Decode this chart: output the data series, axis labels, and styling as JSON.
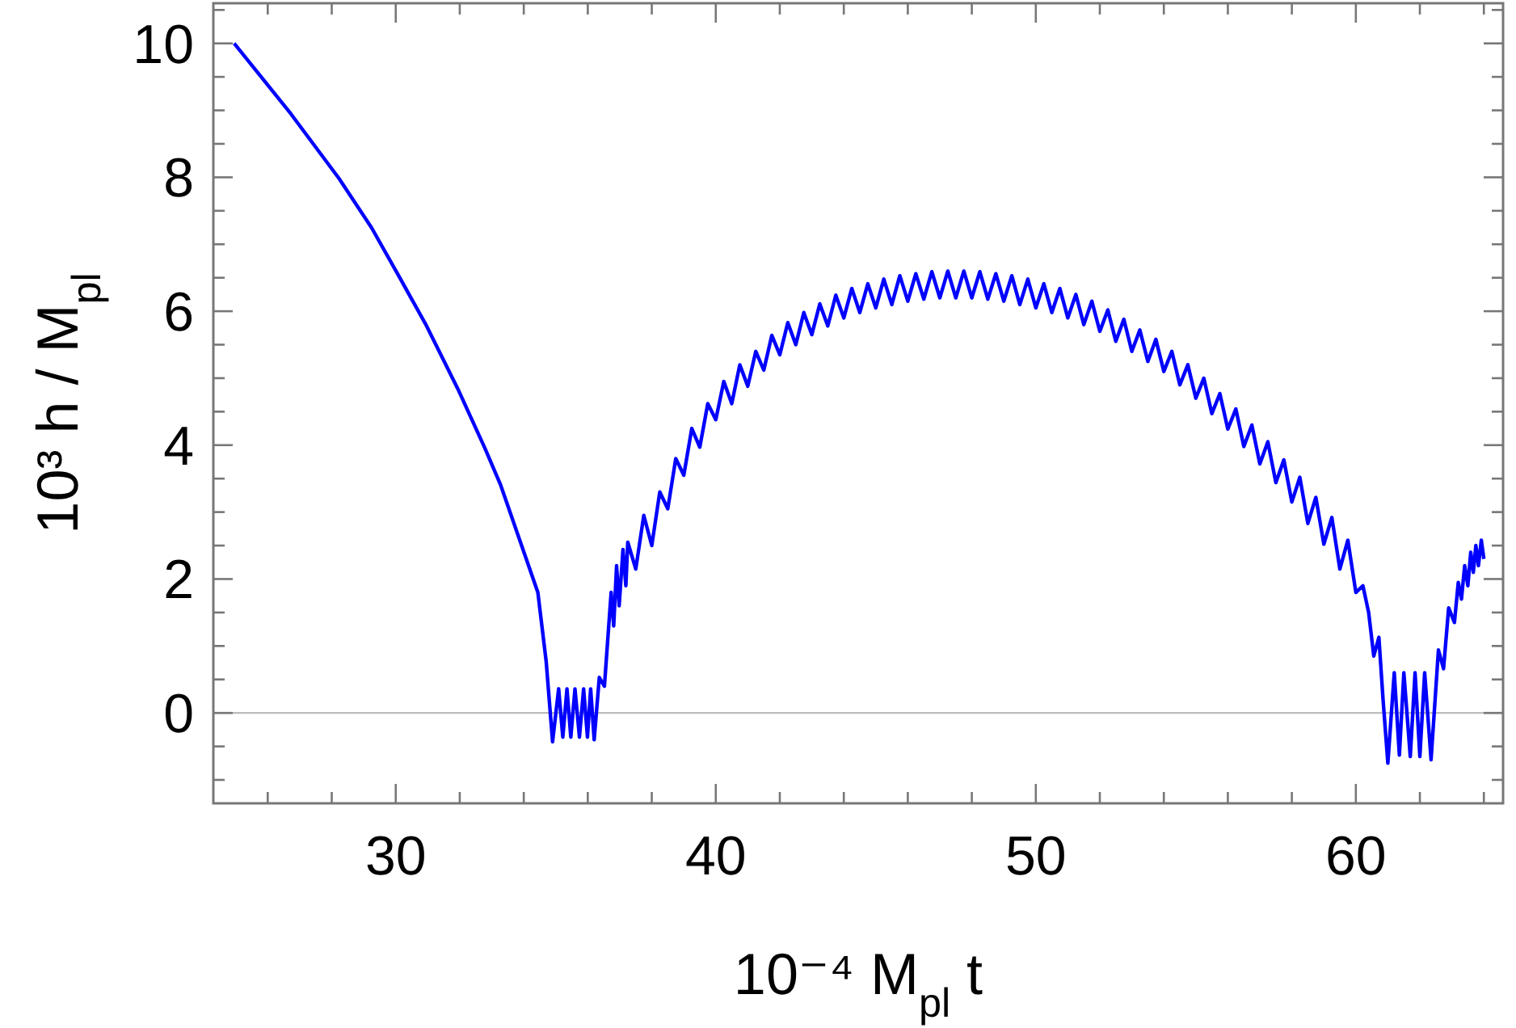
{
  "chart_data": {
    "type": "line",
    "xlabel": "10⁻⁴ M$_{pl}$ t",
    "ylabel": "10³ h / M$_{pl}$",
    "xlim": [
      24.3,
      64.6
    ],
    "ylim": [
      -1.35,
      10.6
    ],
    "xticks": [
      {
        "value": 26,
        "label": null
      },
      {
        "value": 28,
        "label": null
      },
      30,
      {
        "value": 32,
        "label": null
      },
      {
        "value": 34,
        "label": null
      },
      {
        "value": 36,
        "label": null
      },
      {
        "value": 38,
        "label": null
      },
      40,
      {
        "value": 42,
        "label": null
      },
      {
        "value": 44,
        "label": null
      },
      {
        "value": 46,
        "label": null
      },
      {
        "value": 48,
        "label": null
      },
      50,
      {
        "value": 52,
        "label": null
      },
      {
        "value": 54,
        "label": null
      },
      {
        "value": 56,
        "label": null
      },
      {
        "value": 58,
        "label": null
      },
      60,
      {
        "value": 62,
        "label": null
      },
      {
        "value": 64,
        "label": null
      }
    ],
    "yticks": [
      {
        "value": -1,
        "label": null
      },
      {
        "value": -0.5,
        "label": null
      },
      0,
      {
        "value": 0.5,
        "label": null
      },
      {
        "value": 1,
        "label": null
      },
      {
        "value": 1.5,
        "label": null
      },
      2,
      {
        "value": 2.5,
        "label": null
      },
      {
        "value": 3,
        "label": null
      },
      {
        "value": 3.5,
        "label": null
      },
      4,
      {
        "value": 4.5,
        "label": null
      },
      {
        "value": 5,
        "label": null
      },
      {
        "value": 5.5,
        "label": null
      },
      6,
      {
        "value": 6.5,
        "label": null
      },
      {
        "value": 7,
        "label": null
      },
      {
        "value": 7.5,
        "label": null
      },
      8,
      {
        "value": 8.5,
        "label": null
      },
      {
        "value": 9,
        "label": null
      },
      {
        "value": 9.5,
        "label": null
      },
      10,
      {
        "value": 10.5,
        "label": null
      }
    ],
    "ref_lines": [
      {
        "axis": "y",
        "value": 0,
        "color": "#bbbbbb"
      }
    ],
    "series": [
      {
        "color": "#0000ff",
        "x": [
          24.95,
          26.72,
          28.23,
          29.24,
          30.09,
          30.93,
          31.94,
          32.78,
          33.28,
          34.44,
          34.7,
          34.9,
          35.09,
          35.22,
          35.35,
          35.47,
          35.6,
          35.74,
          35.87,
          35.99,
          36.09,
          36.2,
          36.36,
          36.52,
          36.73,
          36.81,
          36.9,
          36.98,
          37.1,
          37.19,
          37.25,
          37.5,
          37.75,
          38,
          38.25,
          38.5,
          38.75,
          39,
          39.25,
          39.5,
          39.75,
          40,
          40.25,
          40.5,
          40.75,
          41,
          41.25,
          41.5,
          41.75,
          42,
          42.25,
          42.5,
          42.75,
          43,
          43.25,
          43.5,
          43.75,
          44,
          44.25,
          44.5,
          44.75,
          45,
          45.25,
          45.5,
          45.75,
          46,
          46.25,
          46.5,
          46.75,
          47,
          47.25,
          47.5,
          47.75,
          48,
          48.25,
          48.5,
          48.75,
          49,
          49.25,
          49.5,
          49.75,
          50,
          50.25,
          50.5,
          50.75,
          51,
          51.25,
          51.5,
          51.75,
          52,
          52.25,
          52.5,
          52.75,
          53,
          53.25,
          53.5,
          53.75,
          54,
          54.25,
          54.5,
          54.75,
          55,
          55.25,
          55.5,
          55.75,
          56,
          56.25,
          56.5,
          56.75,
          57,
          57.25,
          57.5,
          57.75,
          58,
          58.25,
          58.5,
          58.75,
          59,
          59.25,
          59.5,
          59.75,
          60,
          60.22,
          60.4,
          60.56,
          60.72,
          60.85,
          61,
          61.2,
          61.36,
          61.5,
          61.7,
          61.85,
          62,
          62.15,
          62.35,
          62.58,
          62.74,
          62.9,
          63.08,
          63.2,
          63.3,
          63.4,
          63.5,
          63.59,
          63.67,
          63.75,
          63.83,
          63.92,
          64
        ],
        "values": [
          10,
          8.95,
          7.98,
          7.25,
          6.53,
          5.81,
          4.84,
          3.96,
          3.4,
          1.8,
          0.77,
          -0.43,
          0.36,
          -0.36,
          0.36,
          -0.36,
          0.36,
          -0.36,
          0.36,
          -0.36,
          0.36,
          -0.4,
          0.53,
          0.4,
          1.8,
          1.3,
          2.2,
          1.6,
          2.44,
          1.9,
          2.55,
          2.15,
          2.95,
          2.5,
          3.3,
          3.05,
          3.8,
          3.55,
          4.25,
          3.97,
          4.62,
          4.38,
          4.95,
          4.62,
          5.2,
          4.88,
          5.4,
          5.12,
          5.64,
          5.35,
          5.83,
          5.5,
          5.98,
          5.65,
          6.11,
          5.78,
          6.24,
          5.9,
          6.34,
          5.98,
          6.41,
          6.05,
          6.48,
          6.1,
          6.53,
          6.15,
          6.56,
          6.18,
          6.59,
          6.2,
          6.6,
          6.2,
          6.6,
          6.2,
          6.59,
          6.18,
          6.56,
          6.15,
          6.53,
          6.1,
          6.48,
          6.05,
          6.41,
          5.98,
          6.34,
          5.9,
          6.25,
          5.8,
          6.15,
          5.7,
          6.02,
          5.55,
          5.88,
          5.4,
          5.72,
          5.25,
          5.58,
          5.1,
          5.4,
          4.9,
          5.2,
          4.7,
          5,
          4.47,
          4.77,
          4.24,
          4.54,
          3.98,
          4.3,
          3.72,
          4.05,
          3.44,
          3.78,
          3.15,
          3.52,
          2.83,
          3.22,
          2.52,
          2.92,
          2.15,
          2.58,
          1.8,
          1.9,
          1.5,
          0.85,
          1.13,
          0.2,
          -0.75,
          0.6,
          -0.63,
          0.6,
          -0.65,
          0.6,
          -0.65,
          0.6,
          -0.7,
          0.94,
          0.66,
          1.57,
          1.35,
          1.95,
          1.7,
          2.2,
          1.9,
          2.4,
          2.1,
          2.5,
          2.2,
          2.58,
          2.3
        ]
      }
    ]
  }
}
